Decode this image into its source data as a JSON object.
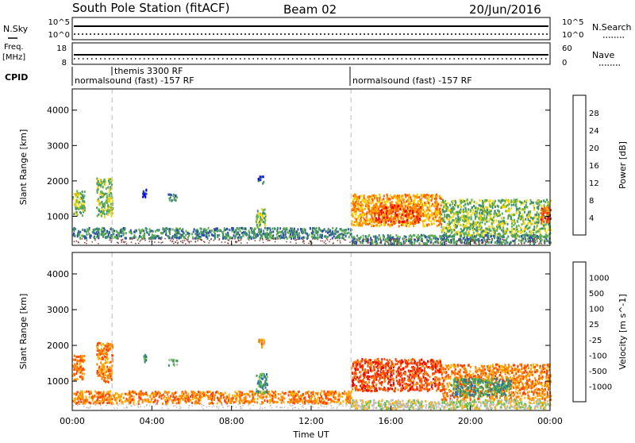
{
  "header": {
    "title": "South Pole Station (fitACF)",
    "beam": "Beam 02",
    "date": "20/Jun/2016"
  },
  "params_panel": {
    "left_labels": {
      "nsky": "N.Sky",
      "freq_line1": "Freq.",
      "freq_line2": "[MHz]",
      "cpid": "CPID"
    },
    "right_labels": {
      "nsearch": "N.Search",
      "nave": "Nave"
    },
    "noise_ticks_left": [
      "10^5",
      "10^0"
    ],
    "noise_ticks_right": [
      "10^5",
      "10^0"
    ],
    "freq_ticks": [
      "18",
      "8"
    ],
    "nave_ticks": [
      "60",
      "0"
    ],
    "cpid_segments": [
      {
        "label": "normalsound (fast) -157 RF",
        "start_h": 0
      },
      {
        "label": "themis 3300 RF",
        "start_h": 2
      },
      {
        "label": "normalsound (fast) -157 RF",
        "start_h": 14
      }
    ]
  },
  "chart_data": [
    {
      "type": "heatmap",
      "name": "Power",
      "ylabel": "Slant Range [km]",
      "xlabel": "Time UT",
      "x_ticks": [
        "00:00",
        "04:00",
        "08:00",
        "12:00",
        "16:00",
        "20:00",
        "00:00"
      ],
      "xlim_hours": [
        0,
        24
      ],
      "y_ticks": [
        1000,
        2000,
        3000,
        4000
      ],
      "ylim": [
        180,
        4600
      ],
      "colorbar": {
        "label": "Power [dB]",
        "range": [
          0,
          32
        ],
        "ticks": [
          "4",
          "8",
          "12",
          "16",
          "20",
          "24",
          "28"
        ],
        "colors": [
          "#0000ee",
          "#2c4ea8",
          "#3f8f6b",
          "#62b04a",
          "#f5d400",
          "#ff9900",
          "#ff5a00",
          "#ee0000"
        ]
      },
      "dashed_markers_h": [
        2,
        14
      ],
      "echo_regions": [
        {
          "t0": 0.0,
          "t1": 0.6,
          "r0": 1050,
          "r1": 1750,
          "level": 3
        },
        {
          "t0": 1.2,
          "t1": 2.0,
          "r0": 1000,
          "r1": 2100,
          "level": 3
        },
        {
          "t0": 3.5,
          "t1": 3.7,
          "r0": 1550,
          "r1": 1800,
          "level": 1
        },
        {
          "t0": 4.8,
          "t1": 5.3,
          "r0": 1450,
          "r1": 1650,
          "level": 2
        },
        {
          "t0": 9.3,
          "t1": 9.6,
          "r0": 1950,
          "r1": 2200,
          "level": 1
        },
        {
          "t0": 0.0,
          "t1": 14.0,
          "r0": 400,
          "r1": 700,
          "level": 2
        },
        {
          "t0": 9.2,
          "t1": 9.7,
          "r0": 700,
          "r1": 1250,
          "level": 3
        },
        {
          "t0": 14.0,
          "t1": 18.5,
          "r0": 750,
          "r1": 1650,
          "level": 5
        },
        {
          "t0": 15.0,
          "t1": 17.5,
          "r0": 850,
          "r1": 1350,
          "level": 6
        },
        {
          "t0": 18.5,
          "t1": 24.0,
          "r0": 450,
          "r1": 1500,
          "level": 3
        },
        {
          "t0": 23.5,
          "t1": 24.0,
          "r0": 800,
          "r1": 1300,
          "level": 6
        },
        {
          "t0": 14.0,
          "t1": 24.0,
          "r0": 250,
          "r1": 500,
          "level": 2
        }
      ]
    },
    {
      "type": "heatmap",
      "name": "Velocity",
      "ylabel": "Slant Range [km]",
      "xlabel": "Time UT",
      "x_ticks": [
        "00:00",
        "04:00",
        "08:00",
        "12:00",
        "16:00",
        "20:00",
        "00:00"
      ],
      "xlim_hours": [
        0,
        24
      ],
      "y_ticks": [
        1000,
        2000,
        3000,
        4000
      ],
      "ylim": [
        180,
        4600
      ],
      "colorbar": {
        "label": "Velocity [m s^-1]",
        "ticks": [
          "1000",
          "500",
          "100",
          "25",
          "-25",
          "-100",
          "-500",
          "-1000"
        ],
        "colors": [
          "#2a3aa8",
          "#2c6fa8",
          "#3f8f6b",
          "#62c040",
          "#bdbdbd",
          "#ffb000",
          "#ff8000",
          "#ff4000",
          "#ee0000"
        ]
      },
      "dashed_markers_h": [
        2,
        14
      ],
      "echo_regions": [
        {
          "t0": 0.0,
          "t1": 0.6,
          "r0": 1050,
          "r1": 1750,
          "level": 6
        },
        {
          "t0": 1.2,
          "t1": 2.0,
          "r0": 1000,
          "r1": 2100,
          "level": 6
        },
        {
          "t0": 3.5,
          "t1": 3.7,
          "r0": 1550,
          "r1": 1800,
          "level": 2
        },
        {
          "t0": 4.8,
          "t1": 5.3,
          "r0": 1450,
          "r1": 1650,
          "level": 3
        },
        {
          "t0": 9.3,
          "t1": 9.6,
          "r0": 1950,
          "r1": 2200,
          "level": 6
        },
        {
          "t0": 0.0,
          "t1": 14.0,
          "r0": 400,
          "r1": 750,
          "level": 6
        },
        {
          "t0": 9.2,
          "t1": 9.8,
          "r0": 700,
          "r1": 1250,
          "level": 2
        },
        {
          "t0": 14.0,
          "t1": 18.5,
          "r0": 750,
          "r1": 1650,
          "level": 7
        },
        {
          "t0": 18.5,
          "t1": 24.0,
          "r0": 500,
          "r1": 1500,
          "level": 6
        },
        {
          "t0": 19.0,
          "t1": 22.0,
          "r0": 600,
          "r1": 1100,
          "level": 2
        },
        {
          "t0": 14.0,
          "t1": 24.0,
          "r0": 250,
          "r1": 500,
          "level": 4
        }
      ]
    }
  ]
}
